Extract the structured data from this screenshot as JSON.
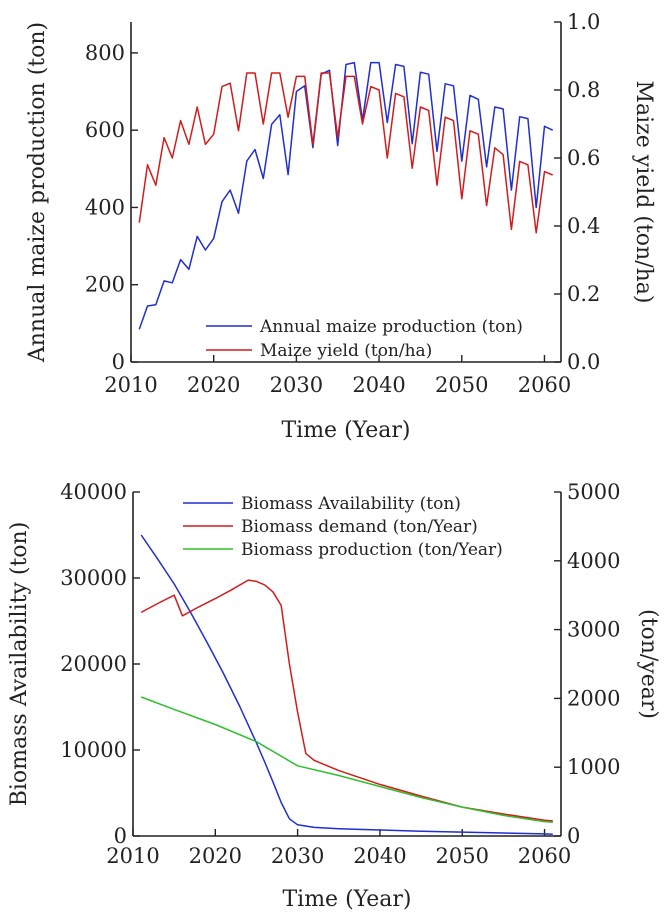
{
  "chart_data": [
    {
      "type": "line",
      "xlabel": "Time (Year)",
      "ylabel_left": "Annual maize production (ton)",
      "ylabel_right": "Maize yield (ton/ha)",
      "xlim": [
        2010,
        2062
      ],
      "ylim_left": [
        0,
        880
      ],
      "ylim_right": [
        0.0,
        1.0
      ],
      "xticks": [
        2010,
        2020,
        2030,
        2040,
        2050,
        2060
      ],
      "yticks_left": [
        0,
        200,
        400,
        600,
        800
      ],
      "yticks_right": [
        "0.0",
        "0.2",
        "0.4",
        "0.6",
        "0.8",
        "1.0"
      ],
      "legend_position": "bottom-center",
      "series": [
        {
          "name": "Annual maize production (ton)",
          "axis": "left",
          "color": "#1f2fd0",
          "x": [
            2011,
            2012,
            2013,
            2014,
            2015,
            2016,
            2017,
            2018,
            2019,
            2020,
            2021,
            2022,
            2023,
            2024,
            2025,
            2026,
            2027,
            2028,
            2029,
            2030,
            2031,
            2032,
            2033,
            2034,
            2035,
            2036,
            2037,
            2038,
            2039,
            2040,
            2041,
            2042,
            2043,
            2044,
            2045,
            2046,
            2047,
            2048,
            2049,
            2050,
            2051,
            2052,
            2053,
            2054,
            2055,
            2056,
            2057,
            2058,
            2059,
            2060,
            2061
          ],
          "values": [
            85,
            145,
            148,
            210,
            205,
            265,
            240,
            325,
            290,
            320,
            415,
            445,
            385,
            520,
            550,
            475,
            615,
            640,
            485,
            700,
            715,
            555,
            745,
            755,
            560,
            770,
            775,
            625,
            775,
            775,
            620,
            770,
            765,
            565,
            750,
            745,
            545,
            720,
            715,
            520,
            690,
            680,
            505,
            660,
            655,
            445,
            635,
            630,
            400,
            610,
            600
          ]
        },
        {
          "name": "Maize yield (ton/ha)",
          "axis": "right",
          "color": "#d21c1c",
          "x": [
            2011,
            2012,
            2013,
            2014,
            2015,
            2016,
            2017,
            2018,
            2019,
            2020,
            2021,
            2022,
            2023,
            2024,
            2025,
            2026,
            2027,
            2028,
            2029,
            2030,
            2031,
            2032,
            2033,
            2034,
            2035,
            2036,
            2037,
            2038,
            2039,
            2040,
            2041,
            2042,
            2043,
            2044,
            2045,
            2046,
            2047,
            2048,
            2049,
            2050,
            2051,
            2052,
            2053,
            2054,
            2055,
            2056,
            2057,
            2058,
            2059,
            2060,
            2061
          ],
          "values": [
            0.41,
            0.58,
            0.52,
            0.66,
            0.6,
            0.71,
            0.64,
            0.75,
            0.64,
            0.67,
            0.81,
            0.82,
            0.68,
            0.85,
            0.85,
            0.7,
            0.85,
            0.85,
            0.72,
            0.84,
            0.84,
            0.64,
            0.85,
            0.85,
            0.66,
            0.84,
            0.84,
            0.7,
            0.81,
            0.8,
            0.6,
            0.79,
            0.78,
            0.57,
            0.75,
            0.74,
            0.52,
            0.72,
            0.71,
            0.48,
            0.68,
            0.67,
            0.46,
            0.63,
            0.61,
            0.39,
            0.59,
            0.58,
            0.38,
            0.56,
            0.55
          ]
        }
      ]
    },
    {
      "type": "line",
      "xlabel": "Time (Year)",
      "ylabel_left": "Biomass Availability (ton)",
      "ylabel_right": "(ton/year)",
      "xlim": [
        2010,
        2062
      ],
      "ylim_left": [
        0,
        40000
      ],
      "ylim_right": [
        0,
        5000
      ],
      "xticks": [
        2010,
        2020,
        2030,
        2040,
        2050,
        2060
      ],
      "yticks_left": [
        0,
        10000,
        20000,
        30000,
        40000
      ],
      "yticks_right": [
        0,
        1000,
        2000,
        3000,
        4000,
        5000
      ],
      "legend_position": "top-center",
      "series": [
        {
          "name": "Biomass Availability (ton)",
          "axis": "left",
          "color": "#1f2fd0",
          "x": [
            2011,
            2013,
            2015,
            2017,
            2019,
            2021,
            2023,
            2025,
            2026,
            2027,
            2028,
            2029,
            2030,
            2032,
            2035,
            2040,
            2045,
            2050,
            2055,
            2060,
            2061
          ],
          "values": [
            35000,
            32200,
            29300,
            26000,
            22500,
            18900,
            15000,
            10800,
            8600,
            6300,
            3900,
            2000,
            1300,
            1000,
            850,
            700,
            550,
            450,
            350,
            250,
            200
          ]
        },
        {
          "name": "Biomass demand (ton/Year)",
          "axis": "right",
          "color": "#d21c1c",
          "x": [
            2011,
            2013,
            2015,
            2016,
            2018,
            2020,
            2022,
            2024,
            2025,
            2026,
            2027,
            2028,
            2029,
            2030,
            2031,
            2032,
            2035,
            2040,
            2045,
            2050,
            2055,
            2060,
            2061
          ],
          "values": [
            3250,
            3380,
            3500,
            3200,
            3330,
            3450,
            3580,
            3720,
            3700,
            3650,
            3550,
            3350,
            2500,
            1800,
            1200,
            1100,
            950,
            750,
            580,
            420,
            320,
            230,
            220
          ]
        },
        {
          "name": "Biomass production (ton/Year)",
          "axis": "right",
          "color": "#2ec02e",
          "x": [
            2011,
            2015,
            2020,
            2025,
            2030,
            2035,
            2040,
            2045,
            2050,
            2055,
            2060,
            2061
          ],
          "values": [
            2020,
            1840,
            1620,
            1370,
            1020,
            880,
            720,
            560,
            420,
            300,
            210,
            200
          ]
        }
      ]
    }
  ]
}
